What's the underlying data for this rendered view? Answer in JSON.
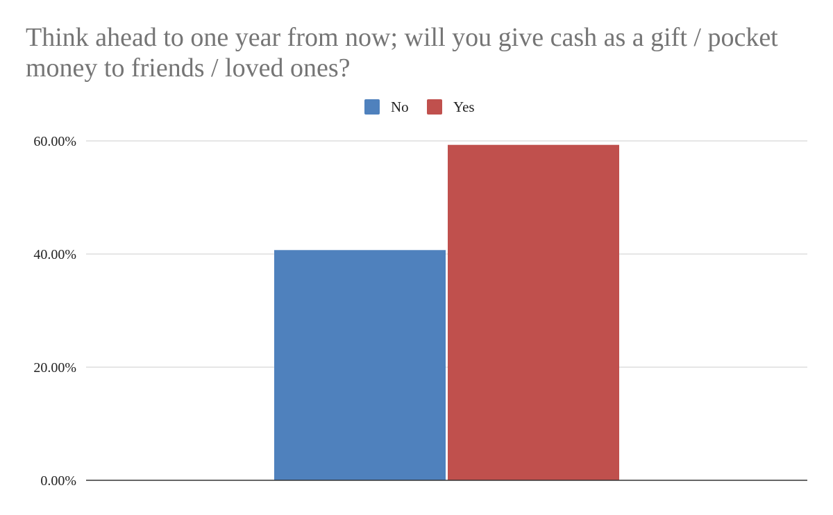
{
  "chart_data": {
    "type": "bar",
    "title": "Think ahead to one year from now; will you give cash as a gift / pocket money to friends / loved ones?",
    "xlabel": "",
    "ylabel": "",
    "categories": [
      ""
    ],
    "series": [
      {
        "name": "No",
        "color": "#4f81bd",
        "values": [
          40.7
        ]
      },
      {
        "name": "Yes",
        "color": "#c0504d",
        "values": [
          59.3
        ]
      }
    ],
    "ylim": [
      0,
      60
    ],
    "y_ticks": [
      0,
      20,
      40,
      60
    ],
    "y_tick_labels": [
      "0.00%",
      "20.00%",
      "40.00%",
      "60.00%"
    ],
    "grid": true,
    "legend_position": "top-center"
  }
}
